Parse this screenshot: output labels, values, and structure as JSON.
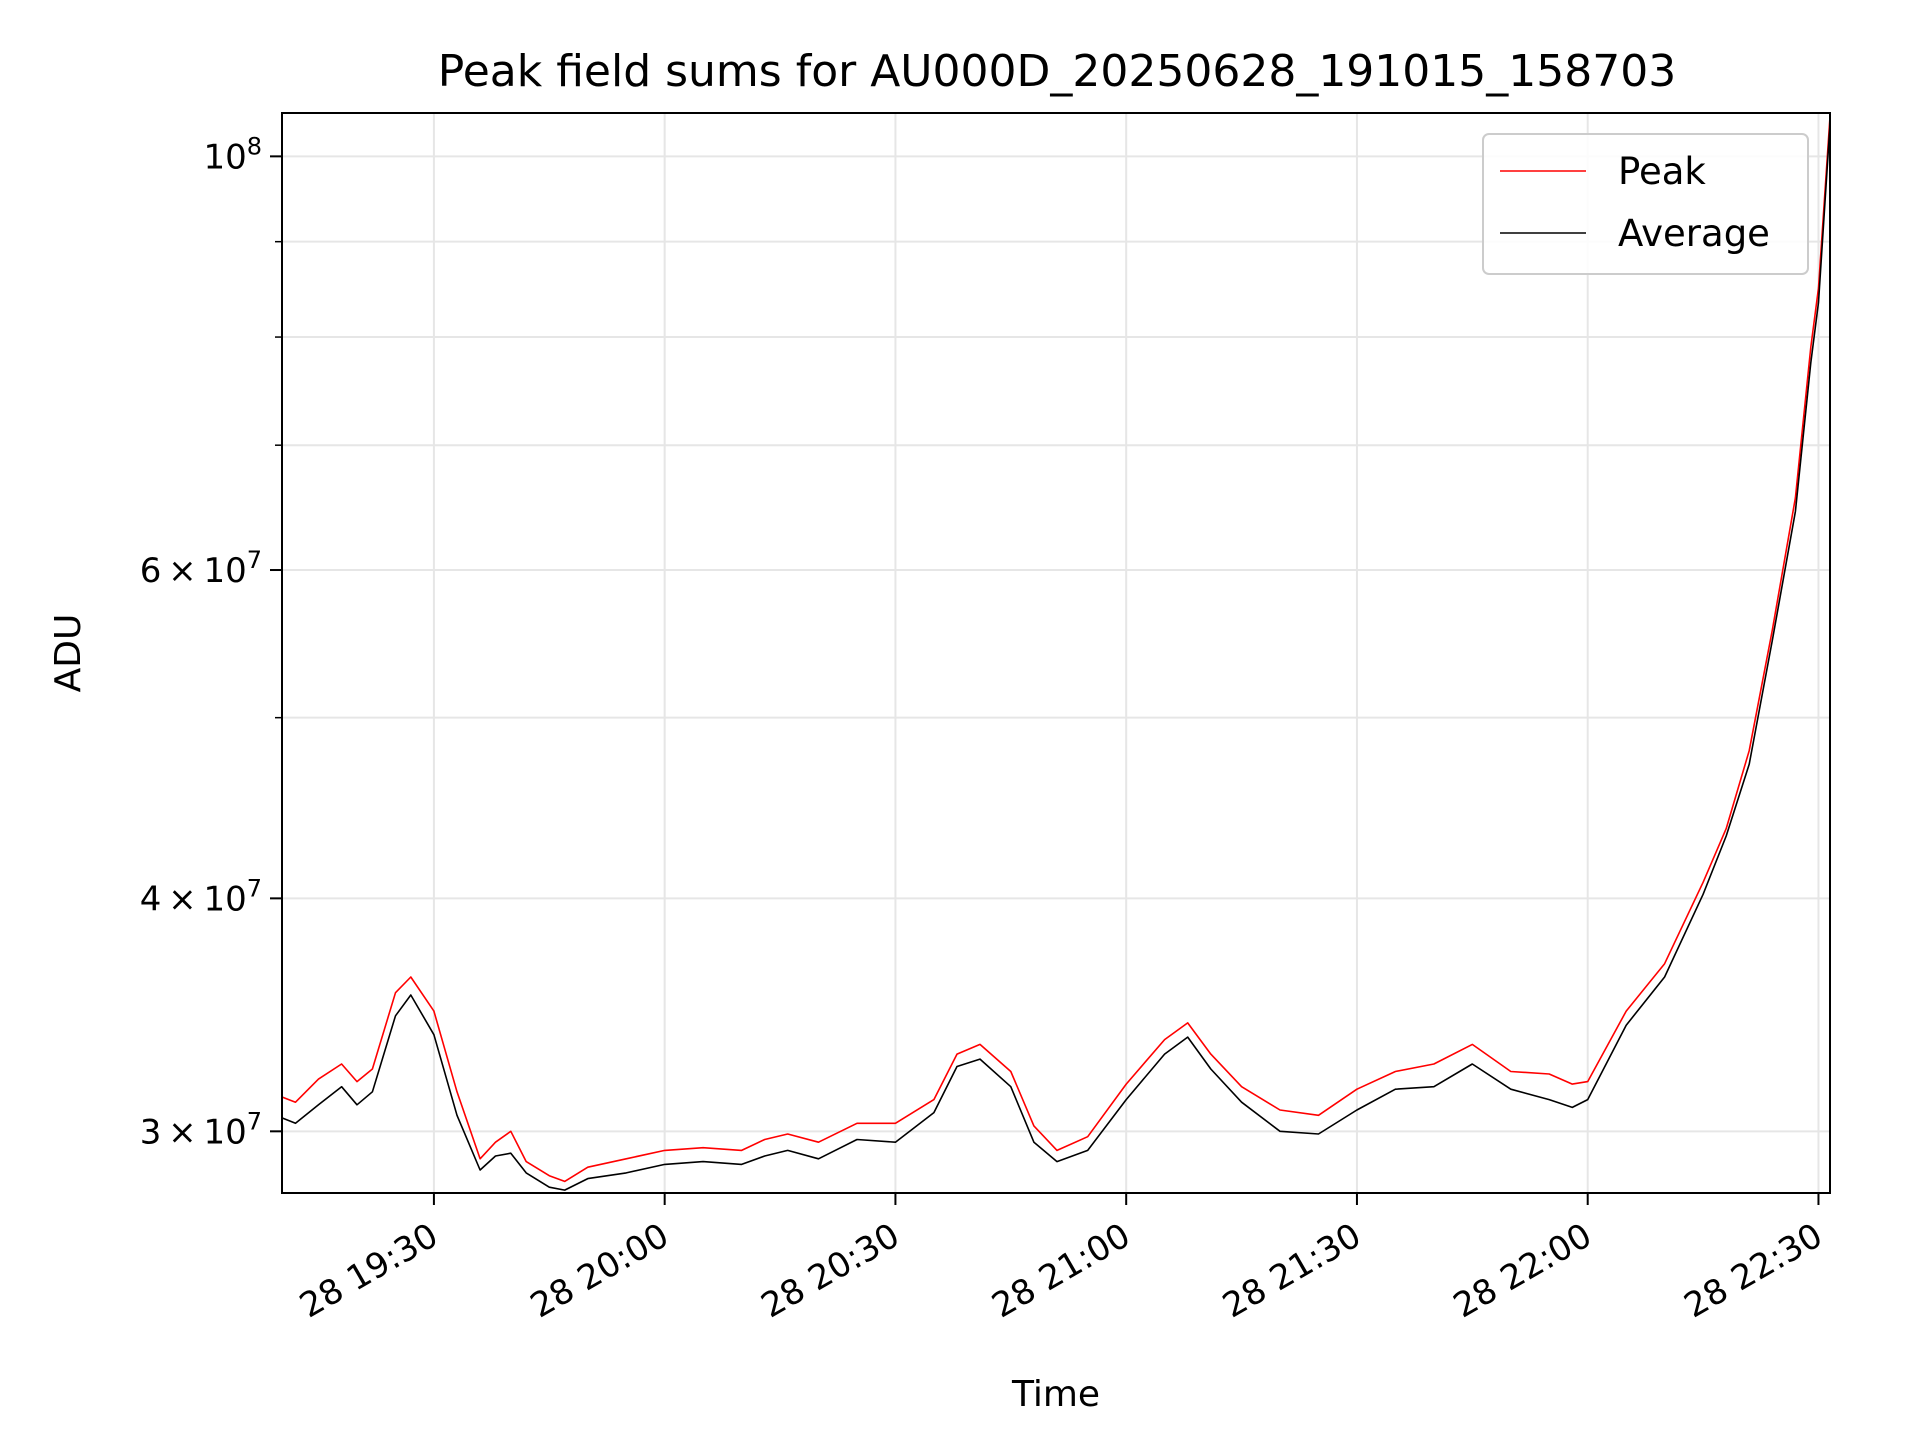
{
  "chart_data": {
    "type": "line",
    "title": "Peak field sums for AU000D_20250628_191015_158703",
    "xlabel": "Time",
    "ylabel": "ADU",
    "y_scale": "log",
    "x_range": [
      "2025-06-28 19:10:15",
      "2025-06-28 22:31:30"
    ],
    "ylim": [
      27800000,
      105500000
    ],
    "grid": true,
    "legend_position": "top-right",
    "x_ticks": [
      {
        "time": "2025-06-28 19:30",
        "label": "28 19:30"
      },
      {
        "time": "2025-06-28 20:00",
        "label": "28 20:00"
      },
      {
        "time": "2025-06-28 20:30",
        "label": "28 20:30"
      },
      {
        "time": "2025-06-28 21:00",
        "label": "28 21:00"
      },
      {
        "time": "2025-06-28 21:30",
        "label": "28 21:30"
      },
      {
        "time": "2025-06-28 22:00",
        "label": "28 22:00"
      },
      {
        "time": "2025-06-28 22:30",
        "label": "28 22:30"
      }
    ],
    "y_ticks_major": [
      {
        "value": 30000000,
        "mantissa": "3",
        "exponent": "7"
      },
      {
        "value": 40000000,
        "mantissa": "4",
        "exponent": "7"
      },
      {
        "value": 60000000,
        "mantissa": "6",
        "exponent": "7"
      },
      {
        "value": 100000000,
        "mantissa": "",
        "exponent": "8"
      }
    ],
    "y_ticks_minor": [
      50000000,
      70000000,
      80000000,
      90000000
    ],
    "y_tick_base": "10",
    "y_tick_times": "×",
    "series": [
      {
        "name": "Peak",
        "color": "#ff0000",
        "x": [
          "2025-06-28 19:10:15",
          "2025-06-28 19:12",
          "2025-06-28 19:15",
          "2025-06-28 19:18",
          "2025-06-28 19:20",
          "2025-06-28 19:22",
          "2025-06-28 19:25",
          "2025-06-28 19:27",
          "2025-06-28 19:30",
          "2025-06-28 19:33",
          "2025-06-28 19:36",
          "2025-06-28 19:38",
          "2025-06-28 19:40",
          "2025-06-28 19:42",
          "2025-06-28 19:45",
          "2025-06-28 19:47",
          "2025-06-28 19:50",
          "2025-06-28 19:55",
          "2025-06-28 20:00",
          "2025-06-28 20:05",
          "2025-06-28 20:10",
          "2025-06-28 20:13",
          "2025-06-28 20:16",
          "2025-06-28 20:20",
          "2025-06-28 20:25",
          "2025-06-28 20:30",
          "2025-06-28 20:35",
          "2025-06-28 20:38",
          "2025-06-28 20:41",
          "2025-06-28 20:45",
          "2025-06-28 20:48",
          "2025-06-28 20:51",
          "2025-06-28 20:55",
          "2025-06-28 21:00",
          "2025-06-28 21:05",
          "2025-06-28 21:08",
          "2025-06-28 21:11",
          "2025-06-28 21:15",
          "2025-06-28 21:20",
          "2025-06-28 21:25",
          "2025-06-28 21:30",
          "2025-06-28 21:35",
          "2025-06-28 21:40",
          "2025-06-28 21:45",
          "2025-06-28 21:50",
          "2025-06-28 21:55",
          "2025-06-28 21:58",
          "2025-06-28 22:00",
          "2025-06-28 22:05",
          "2025-06-28 22:10",
          "2025-06-28 22:15",
          "2025-06-28 22:18",
          "2025-06-28 22:21",
          "2025-06-28 22:24",
          "2025-06-28 22:27",
          "2025-06-28 22:29",
          "2025-06-28 22:30",
          "2025-06-28 22:31:30"
        ],
        "y": [
          31300000,
          31100000,
          32000000,
          32600000,
          31900000,
          32400000,
          35600000,
          36300000,
          34800000,
          31500000,
          29000000,
          29600000,
          30000000,
          28900000,
          28400000,
          28200000,
          28700000,
          29000000,
          29300000,
          29400000,
          29300000,
          29700000,
          29900000,
          29600000,
          30300000,
          30300000,
          31200000,
          33000000,
          33400000,
          32300000,
          30200000,
          29300000,
          29800000,
          31800000,
          33600000,
          34300000,
          33000000,
          31700000,
          30800000,
          30600000,
          31600000,
          32300000,
          32600000,
          33400000,
          32300000,
          32200000,
          31800000,
          31900000,
          34800000,
          36900000,
          40800000,
          43600000,
          48000000,
          55700000,
          65600000,
          79000000,
          85000000,
          105000000
        ]
      },
      {
        "name": "Average",
        "color": "#000000",
        "x": [
          "2025-06-28 19:10:15",
          "2025-06-28 19:12",
          "2025-06-28 19:15",
          "2025-06-28 19:18",
          "2025-06-28 19:20",
          "2025-06-28 19:22",
          "2025-06-28 19:25",
          "2025-06-28 19:27",
          "2025-06-28 19:30",
          "2025-06-28 19:33",
          "2025-06-28 19:36",
          "2025-06-28 19:38",
          "2025-06-28 19:40",
          "2025-06-28 19:42",
          "2025-06-28 19:45",
          "2025-06-28 19:47",
          "2025-06-28 19:50",
          "2025-06-28 19:55",
          "2025-06-28 20:00",
          "2025-06-28 20:05",
          "2025-06-28 20:10",
          "2025-06-28 20:13",
          "2025-06-28 20:16",
          "2025-06-28 20:20",
          "2025-06-28 20:25",
          "2025-06-28 20:30",
          "2025-06-28 20:35",
          "2025-06-28 20:38",
          "2025-06-28 20:41",
          "2025-06-28 20:45",
          "2025-06-28 20:48",
          "2025-06-28 20:51",
          "2025-06-28 20:55",
          "2025-06-28 21:00",
          "2025-06-28 21:05",
          "2025-06-28 21:08",
          "2025-06-28 21:11",
          "2025-06-28 21:15",
          "2025-06-28 21:20",
          "2025-06-28 21:25",
          "2025-06-28 21:30",
          "2025-06-28 21:35",
          "2025-06-28 21:40",
          "2025-06-28 21:45",
          "2025-06-28 21:50",
          "2025-06-28 21:55",
          "2025-06-28 21:58",
          "2025-06-28 22:00",
          "2025-06-28 22:05",
          "2025-06-28 22:10",
          "2025-06-28 22:15",
          "2025-06-28 22:18",
          "2025-06-28 22:21",
          "2025-06-28 22:24",
          "2025-06-28 22:27",
          "2025-06-28 22:29",
          "2025-06-28 22:30",
          "2025-06-28 22:31:30"
        ],
        "y": [
          30500000,
          30300000,
          31000000,
          31700000,
          31000000,
          31500000,
          34600000,
          35500000,
          33800000,
          30600000,
          28600000,
          29100000,
          29200000,
          28500000,
          28000000,
          27900000,
          28300000,
          28500000,
          28800000,
          28900000,
          28800000,
          29100000,
          29300000,
          29000000,
          29700000,
          29600000,
          30700000,
          32500000,
          32800000,
          31700000,
          29600000,
          28900000,
          29300000,
          31200000,
          33000000,
          33700000,
          32400000,
          31100000,
          30000000,
          29900000,
          30800000,
          31600000,
          31700000,
          32600000,
          31600000,
          31200000,
          30900000,
          31200000,
          34200000,
          36300000,
          40200000,
          43200000,
          47200000,
          55000000,
          64500000,
          77500000,
          83500000,
          104000000
        ]
      }
    ]
  }
}
